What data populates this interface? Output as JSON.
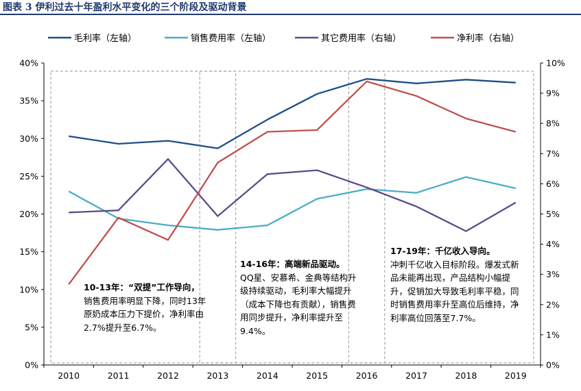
{
  "figure_title": "图表 3   伊利过去十年盈利水平变化的三个阶段及驱动背景",
  "colors": {
    "gross_margin": "#1b4f8a",
    "selling_exp": "#4bacc6",
    "other_exp": "#5e4a87",
    "net_margin": "#c0504d",
    "title": "#1f3a6e",
    "phase_box": "#a6a6a6"
  },
  "chart_data": {
    "type": "line",
    "x": [
      "2010",
      "2011",
      "2012",
      "2013",
      "2014",
      "2015",
      "2016",
      "2017",
      "2018",
      "2019"
    ],
    "y_left": {
      "ticks": [
        "0%",
        "5%",
        "10%",
        "15%",
        "20%",
        "25%",
        "30%",
        "35%",
        "40%"
      ],
      "range": [
        0,
        40
      ]
    },
    "y_right": {
      "ticks": [
        "0%",
        "1%",
        "2%",
        "3%",
        "4%",
        "5%",
        "6%",
        "7%",
        "8%",
        "9%",
        "10%"
      ],
      "range": [
        0,
        10
      ]
    },
    "legend_position": "top",
    "series": [
      {
        "name": "毛利率（左轴）",
        "axis": "left",
        "color": "#1b4f8a",
        "values": [
          30.3,
          29.3,
          29.7,
          28.7,
          32.5,
          35.9,
          37.9,
          37.3,
          37.8,
          37.4
        ]
      },
      {
        "name": "销售费用率（左轴）",
        "axis": "left",
        "color": "#4bacc6",
        "values": [
          23.0,
          19.4,
          18.5,
          17.9,
          18.5,
          22.0,
          23.3,
          22.8,
          24.9,
          23.4
        ]
      },
      {
        "name": "其它费用率（右轴）",
        "axis": "right",
        "color": "#5e4a87",
        "values": [
          5.05,
          5.12,
          6.82,
          4.93,
          6.32,
          6.45,
          5.88,
          5.25,
          4.43,
          5.38
        ]
      },
      {
        "name": "净利率（右轴）",
        "axis": "right",
        "color": "#c0504d",
        "values": [
          2.67,
          4.88,
          4.14,
          6.7,
          7.72,
          7.78,
          9.39,
          8.91,
          8.16,
          7.72
        ]
      }
    ],
    "phase_boxes": [
      {
        "from": "2010",
        "to": "2013"
      },
      {
        "from": "2013",
        "to": "2016"
      },
      {
        "from": "2016",
        "to": "2019"
      }
    ]
  },
  "annotations": [
    {
      "heading": "10-13年：“双提”工作导向，",
      "body": "销售费用率明显下降，同时13年原奶成本压力下提价，净利率由2.7%提升至6.7%。"
    },
    {
      "heading": "14-16年：高端新品驱动。",
      "body": "QQ星、安慕希、金典等结构升级持续驱动，毛利率大幅提升（成本下降也有贡献），销售费用同步提升，净利率提升至9.4%。"
    },
    {
      "heading": "17-19年：千亿收入导向。",
      "body": "冲刺千亿收入目标阶段。爆发式新品未能再出现，产品结构小幅提升，促销加大导致毛利率平稳，同时销售费用率升至高位后维持，净利率高位回落至7.7%。"
    }
  ]
}
